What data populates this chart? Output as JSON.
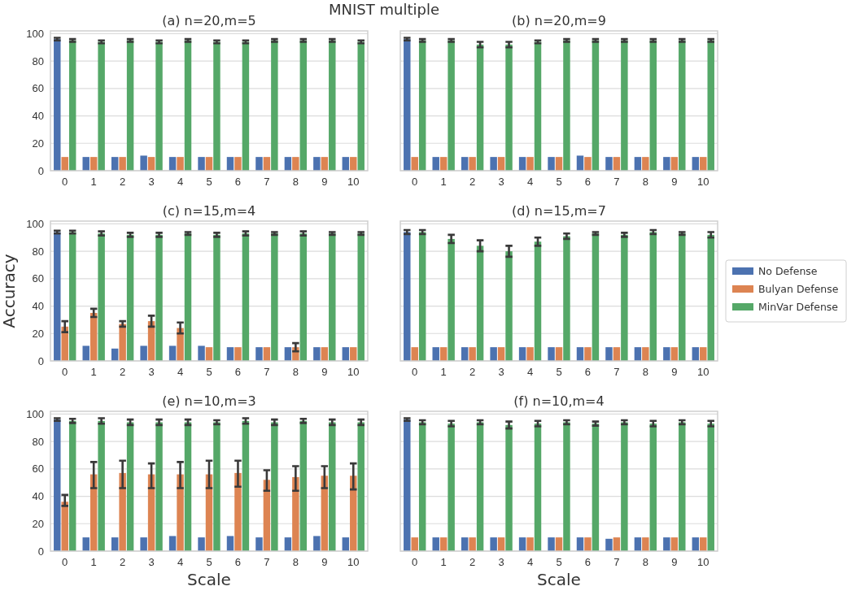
{
  "chart_data": [
    {
      "type": "bar",
      "title": "(a) n=20,m=5",
      "annotations": [
        "MNIST multiple"
      ],
      "categories": [
        "0",
        "1",
        "2",
        "3",
        "4",
        "5",
        "6",
        "7",
        "8",
        "9",
        "10"
      ],
      "ylim": [
        0,
        102
      ],
      "yticks": [
        0,
        20,
        40,
        60,
        80,
        100
      ],
      "grid": "y",
      "series": [
        {
          "color": "#4c72b0",
          "values": [
            96,
            10,
            10,
            11,
            10,
            10,
            10,
            10,
            10,
            10,
            10
          ],
          "errors": [
            1,
            null,
            null,
            null,
            null,
            null,
            null,
            null,
            null,
            null,
            null
          ]
        },
        {
          "color": "#dd8452",
          "values": [
            10,
            10,
            10,
            10,
            10,
            10,
            10,
            10,
            10,
            10,
            10
          ]
        },
        {
          "color": "#55a868",
          "values": [
            95,
            94,
            95,
            94,
            95,
            94,
            94,
            95,
            95,
            95,
            94
          ],
          "errors": [
            1,
            1,
            1,
            1,
            1,
            1,
            1,
            1,
            1,
            1,
            1
          ]
        }
      ]
    },
    {
      "type": "bar",
      "title": "(b) n=20,m=9",
      "categories": [
        "0",
        "1",
        "2",
        "3",
        "4",
        "5",
        "6",
        "7",
        "8",
        "9",
        "10"
      ],
      "ylim": [
        0,
        102
      ],
      "yticks": [
        0,
        20,
        40,
        60,
        80,
        100
      ],
      "grid": "y",
      "tick_labels": "x",
      "series": [
        {
          "color": "#4c72b0",
          "values": [
            96,
            10,
            10,
            10,
            10,
            10,
            11,
            10,
            10,
            10,
            10
          ],
          "errors": [
            1,
            null,
            null,
            null,
            null,
            null,
            null,
            null,
            null,
            null,
            null
          ]
        },
        {
          "color": "#dd8452",
          "values": [
            10,
            10,
            10,
            10,
            10,
            10,
            10,
            10,
            10,
            10,
            10
          ]
        },
        {
          "color": "#55a868",
          "values": [
            95,
            95,
            92,
            92,
            94,
            95,
            95,
            95,
            95,
            95,
            95
          ],
          "errors": [
            1,
            1,
            2,
            2,
            1,
            1,
            1,
            1,
            1,
            1,
            1
          ]
        }
      ]
    },
    {
      "type": "bar",
      "title": "(c) n=15,m=4",
      "ylabel": "Accuracy",
      "categories": [
        "0",
        "1",
        "2",
        "3",
        "4",
        "5",
        "6",
        "7",
        "8",
        "9",
        "10"
      ],
      "ylim": [
        0,
        102
      ],
      "yticks": [
        0,
        20,
        40,
        60,
        80,
        100
      ],
      "grid": "y",
      "series": [
        {
          "color": "#4c72b0",
          "values": [
            94,
            11,
            9,
            11,
            11,
            11,
            10,
            10,
            10,
            10,
            10
          ],
          "errors": [
            1,
            null,
            null,
            null,
            null,
            null,
            null,
            null,
            null,
            null,
            null
          ]
        },
        {
          "color": "#dd8452",
          "values": [
            25,
            35,
            27,
            29,
            24,
            10,
            10,
            10,
            10,
            10,
            10
          ],
          "errors": [
            4,
            3,
            2,
            4,
            4,
            null,
            null,
            null,
            3,
            null,
            null
          ]
        },
        {
          "color": "#55a868",
          "values": [
            94,
            93,
            92,
            92,
            93,
            92,
            93,
            93,
            93,
            93,
            93
          ],
          "errors": [
            1,
            1.5,
            1.5,
            1.5,
            1,
            1.5,
            1.5,
            1,
            1.5,
            1,
            1
          ]
        }
      ]
    },
    {
      "type": "bar",
      "title": "(d) n=15,m=7",
      "categories": [
        "0",
        "1",
        "2",
        "3",
        "4",
        "5",
        "6",
        "7",
        "8",
        "9",
        "10"
      ],
      "ylim": [
        0,
        102
      ],
      "yticks": [
        0,
        20,
        40,
        60,
        80,
        100
      ],
      "grid": "y",
      "tick_labels": "x",
      "legend": "right",
      "series": [
        {
          "name": "No Defense",
          "color": "#4c72b0",
          "values": [
            94,
            10,
            10,
            10,
            10,
            10,
            10,
            10,
            10,
            10,
            10
          ],
          "errors": [
            1.5,
            null,
            null,
            null,
            null,
            null,
            null,
            null,
            null,
            null,
            null
          ]
        },
        {
          "name": "Bulyan Defense",
          "color": "#dd8452",
          "values": [
            10,
            10,
            10,
            10,
            10,
            10,
            10,
            10,
            10,
            10,
            10
          ]
        },
        {
          "name": "MinVar Defense",
          "color": "#55a868",
          "values": [
            94,
            89,
            84,
            80,
            87,
            91,
            93,
            92,
            94,
            93,
            92
          ],
          "errors": [
            1.5,
            3,
            4,
            4,
            3,
            2,
            1,
            1.5,
            1.5,
            1,
            2
          ]
        }
      ]
    },
    {
      "type": "bar",
      "title": "(e) n=10,m=3",
      "xlabel": "Scale",
      "categories": [
        "0",
        "1",
        "2",
        "3",
        "4",
        "5",
        "6",
        "7",
        "8",
        "9",
        "10"
      ],
      "ylim": [
        0,
        102
      ],
      "yticks": [
        0,
        20,
        40,
        60,
        80,
        100
      ],
      "grid": "y",
      "series": [
        {
          "color": "#4c72b0",
          "values": [
            96,
            10,
            10,
            10,
            11,
            10,
            11,
            10,
            10,
            11,
            10
          ],
          "errors": [
            1,
            null,
            null,
            null,
            null,
            null,
            null,
            null,
            null,
            null,
            null
          ]
        },
        {
          "color": "#dd8452",
          "values": [
            36,
            56,
            57,
            56,
            56,
            56,
            57,
            52,
            54,
            55,
            55
          ],
          "errors": [
            [
              33,
              41
            ],
            [
              46,
              65
            ],
            [
              46,
              66
            ],
            [
              46,
              64
            ],
            [
              46,
              65
            ],
            [
              46,
              66
            ],
            [
              47,
              66
            ],
            [
              44,
              59
            ],
            [
              44,
              62
            ],
            [
              46,
              62
            ],
            [
              45,
              64
            ]
          ]
        },
        {
          "color": "#55a868",
          "values": [
            95,
            95,
            94,
            94,
            94,
            94,
            95,
            94,
            95,
            94,
            94
          ],
          "errors": [
            1.5,
            2,
            2,
            2,
            2,
            1.5,
            2,
            2,
            1.5,
            2,
            2
          ]
        }
      ]
    },
    {
      "type": "bar",
      "title": "(f) n=10,m=4",
      "xlabel": "Scale",
      "categories": [
        "0",
        "1",
        "2",
        "3",
        "4",
        "5",
        "6",
        "7",
        "8",
        "9",
        "10"
      ],
      "ylim": [
        0,
        102
      ],
      "yticks": [
        0,
        20,
        40,
        60,
        80,
        100
      ],
      "grid": "y",
      "tick_labels": "x",
      "series": [
        {
          "color": "#4c72b0",
          "values": [
            96,
            10,
            10,
            10,
            10,
            10,
            10,
            9,
            10,
            10,
            10
          ],
          "errors": [
            1,
            null,
            null,
            null,
            null,
            null,
            null,
            null,
            null,
            null,
            null
          ]
        },
        {
          "color": "#dd8452",
          "values": [
            10,
            10,
            10,
            10,
            10,
            10,
            10,
            10,
            10,
            10,
            10
          ]
        },
        {
          "color": "#55a868",
          "values": [
            94,
            93,
            94,
            92,
            93,
            94,
            93,
            94,
            93,
            94,
            93
          ],
          "errors": [
            1.5,
            2,
            1.5,
            2.5,
            2,
            1.5,
            1.5,
            1.5,
            2,
            1.5,
            2
          ]
        }
      ]
    }
  ]
}
